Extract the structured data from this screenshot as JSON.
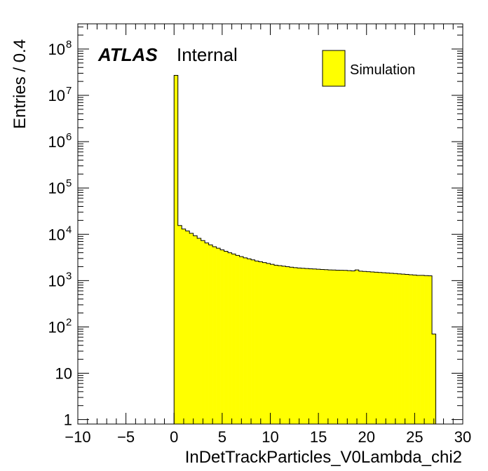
{
  "atlas_label": "ATLAS",
  "atlas_sublabel": "Internal",
  "legend_entry": "Simulation",
  "chart_data": {
    "type": "bar",
    "subtype": "histogram",
    "xlabel": "InDetTrackParticles_V0Lambda_chi2",
    "ylabel": "Entries / 0.4",
    "xlim": [
      -10,
      30
    ],
    "ylim": [
      0.8,
      350000000
    ],
    "log_y": true,
    "grid": false,
    "legend_position": "top-right",
    "fill_color": "#ffff00",
    "edge_color": "#000000",
    "x_tick_labels": [
      "−10",
      "−5",
      "0",
      "5",
      "10",
      "15",
      "20",
      "25",
      "30"
    ],
    "y_tick_labels": [
      {
        "base": "1",
        "exp": ""
      },
      {
        "base": "10",
        "exp": ""
      },
      {
        "base": "10",
        "exp": "2"
      },
      {
        "base": "10",
        "exp": "3"
      },
      {
        "base": "10",
        "exp": "4"
      },
      {
        "base": "10",
        "exp": "5"
      },
      {
        "base": "10",
        "exp": "6"
      },
      {
        "base": "10",
        "exp": "7"
      },
      {
        "base": "10",
        "exp": "8"
      }
    ],
    "bin_width": 0.4,
    "bin_start": 0,
    "series": [
      {
        "values": [
          27000000,
          15500,
          13000,
          11800,
          10500,
          9300,
          8200,
          7300,
          6500,
          5900,
          5400,
          5000,
          4600,
          4300,
          4000,
          3750,
          3500,
          3300,
          3100,
          2950,
          2800,
          2650,
          2550,
          2450,
          2350,
          2250,
          2150,
          2100,
          2050,
          2000,
          1950,
          1900,
          1870,
          1850,
          1820,
          1800,
          1780,
          1760,
          1740,
          1720,
          1700,
          1690,
          1680,
          1670,
          1660,
          1640,
          1620,
          1700,
          1600,
          1580,
          1560,
          1540,
          1520,
          1500,
          1480,
          1460,
          1440,
          1420,
          1400,
          1380,
          1360,
          1340,
          1320,
          1300,
          1300,
          1280,
          1270,
          70
        ]
      }
    ]
  }
}
